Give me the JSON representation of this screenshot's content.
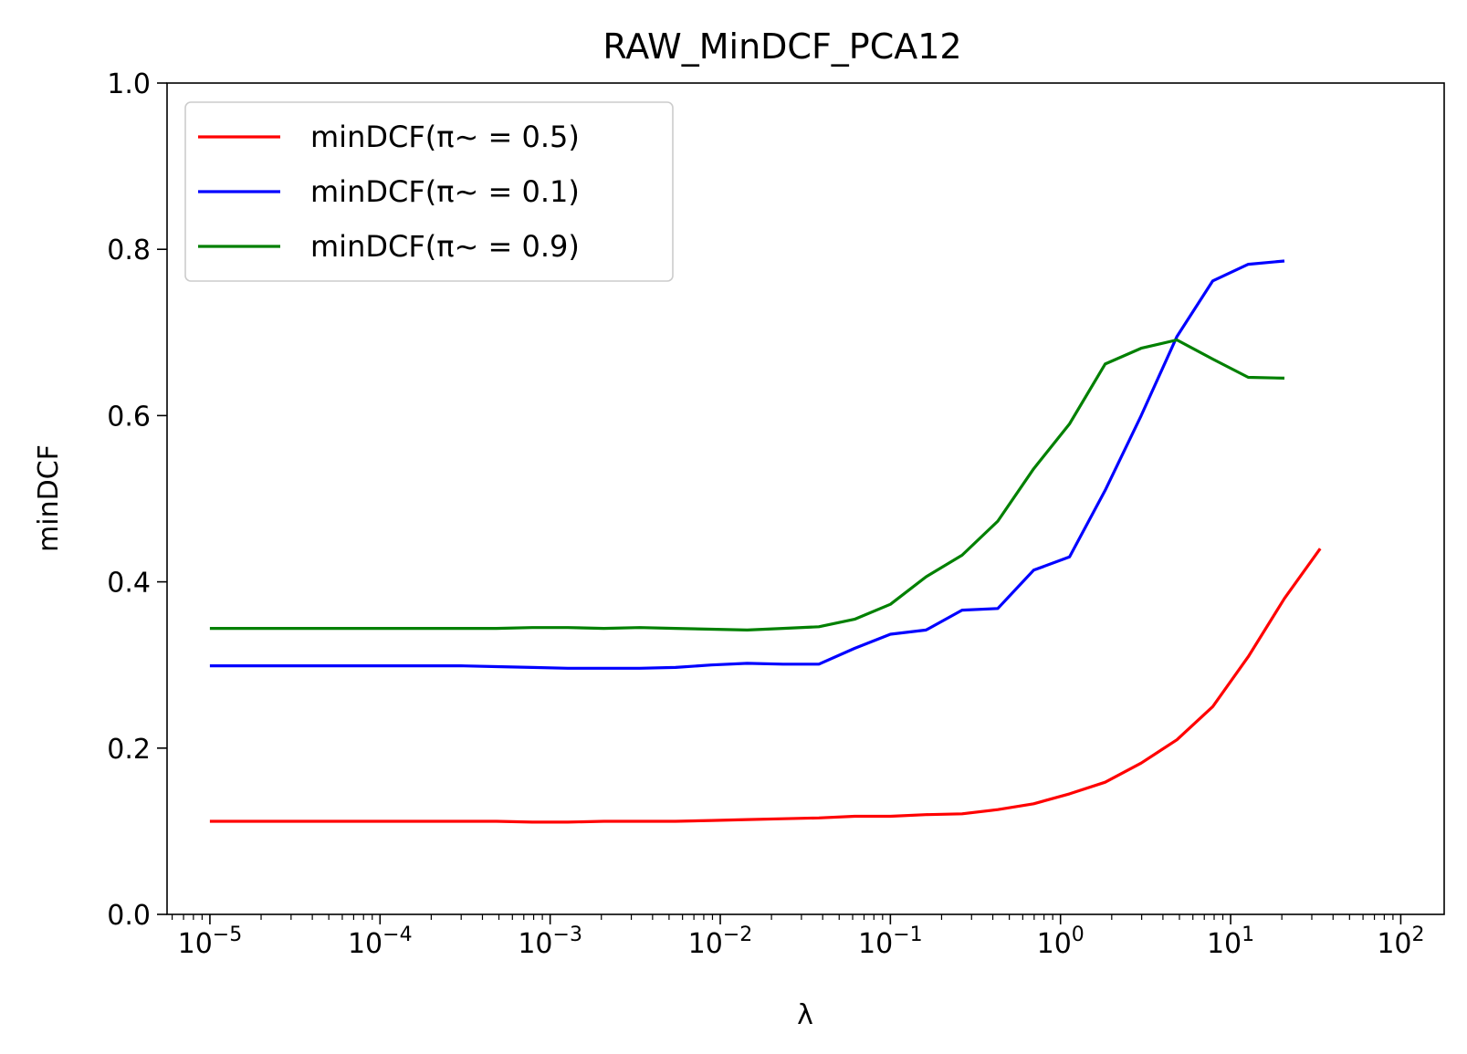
{
  "chart_data": {
    "type": "line",
    "title": "RAW_MinDCF_PCA12",
    "xlabel": "λ",
    "ylabel": "minDCF",
    "xscale": "log",
    "xlim": [
      5.6e-06,
      180
    ],
    "ylim": [
      0.0,
      1.0
    ],
    "x_ticks": [
      {
        "value": 1e-05,
        "base": "10",
        "exp": "−5"
      },
      {
        "value": 0.0001,
        "base": "10",
        "exp": "−4"
      },
      {
        "value": 0.001,
        "base": "10",
        "exp": "−3"
      },
      {
        "value": 0.01,
        "base": "10",
        "exp": "−2"
      },
      {
        "value": 0.1,
        "base": "10",
        "exp": "−1"
      },
      {
        "value": 1,
        "base": "10",
        "exp": "0"
      },
      {
        "value": 10,
        "base": "10",
        "exp": "1"
      },
      {
        "value": 100,
        "base": "10",
        "exp": "2"
      }
    ],
    "y_ticks": [
      {
        "value": 0.0,
        "label": "0.0"
      },
      {
        "value": 0.2,
        "label": "0.2"
      },
      {
        "value": 0.4,
        "label": "0.4"
      },
      {
        "value": 0.6,
        "label": "0.6"
      },
      {
        "value": 0.8,
        "label": "0.8"
      },
      {
        "value": 1.0,
        "label": "1.0"
      }
    ],
    "grid": false,
    "legend_position": "top-left",
    "x": [
      1e-05,
      1.62e-05,
      2.64e-05,
      4.28e-05,
      6.95e-05,
      0.000113,
      0.000183,
      0.000298,
      0.000483,
      0.000785,
      0.00127,
      0.00207,
      0.00336,
      0.00546,
      0.00886,
      0.0144,
      0.0234,
      0.038,
      0.0616,
      0.1,
      0.162,
      0.264,
      0.428,
      0.695,
      1.13,
      1.83,
      2.98,
      4.83,
      7.85,
      12.7,
      20.7,
      33.6,
      54.6,
      88.6,
      144
    ],
    "series": [
      {
        "name": "minDCF(π~ = 0.5)",
        "color": "#ff0000",
        "values": [
          0.112,
          0.112,
          0.112,
          0.112,
          0.112,
          0.112,
          0.112,
          0.112,
          0.112,
          0.111,
          0.111,
          0.112,
          0.112,
          0.112,
          0.113,
          0.114,
          0.115,
          0.116,
          0.118,
          0.118,
          0.12,
          0.121,
          0.126,
          0.133,
          0.145,
          0.159,
          0.182,
          0.21,
          0.25,
          0.31,
          0.38,
          0.44,
          null,
          null,
          null
        ]
      },
      {
        "name": "minDCF(π~ = 0.1)",
        "color": "#0000ff",
        "values": [
          0.299,
          0.299,
          0.299,
          0.299,
          0.299,
          0.299,
          0.299,
          0.299,
          0.298,
          0.297,
          0.296,
          0.296,
          0.296,
          0.297,
          0.3,
          0.302,
          0.301,
          0.301,
          0.32,
          0.337,
          0.342,
          0.366,
          0.368,
          0.414,
          0.43,
          0.51,
          0.6,
          0.695,
          0.762,
          0.782,
          0.786,
          null,
          null,
          null,
          null
        ]
      },
      {
        "name": "minDCF(π~ = 0.9)",
        "color": "#008000",
        "values": [
          0.344,
          0.344,
          0.344,
          0.344,
          0.344,
          0.344,
          0.344,
          0.344,
          0.344,
          0.345,
          0.345,
          0.344,
          0.345,
          0.344,
          0.343,
          0.342,
          0.344,
          0.346,
          0.355,
          0.373,
          0.406,
          0.432,
          0.473,
          0.536,
          0.59,
          0.662,
          0.681,
          0.691,
          0.668,
          0.646,
          0.645,
          null,
          null,
          null,
          null
        ]
      }
    ]
  }
}
